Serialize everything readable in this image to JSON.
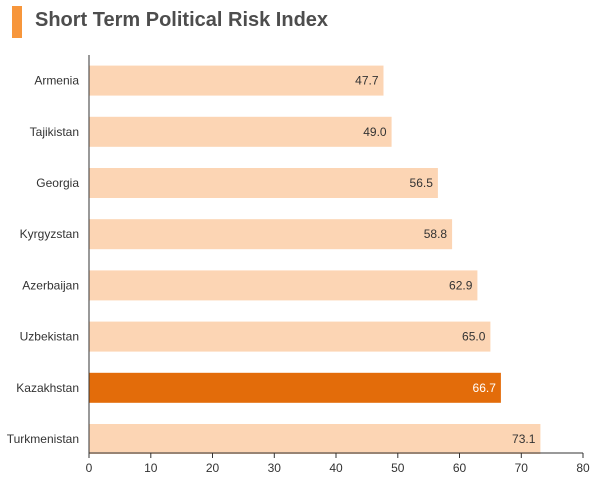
{
  "title": "Short Term Political Risk Index",
  "colors": {
    "accent": "#f7963b",
    "bar": "#fcd5b4",
    "highlight": "#e36c0a",
    "text": "#333333",
    "axis": "#333333",
    "highlight_text": "#ffffff"
  },
  "chart_data": {
    "type": "bar",
    "orientation": "horizontal",
    "title": "Short Term Political Risk Index",
    "categories": [
      "Armenia",
      "Tajikistan",
      "Georgia",
      "Kyrgyzstan",
      "Azerbaijan",
      "Uzbekistan",
      "Kazakhstan",
      "Turkmenistan"
    ],
    "values": [
      47.7,
      49.0,
      56.5,
      58.8,
      62.9,
      65.0,
      66.7,
      73.1
    ],
    "value_labels": [
      "47.7",
      "49.0",
      "56.5",
      "58.8",
      "62.9",
      "65.0",
      "66.7",
      "73.1"
    ],
    "highlighted": "Kazakhstan",
    "xlim": [
      0,
      80
    ],
    "xticks": [
      0,
      10,
      20,
      30,
      40,
      50,
      60,
      70,
      80
    ],
    "grid": false,
    "legend": "none"
  }
}
